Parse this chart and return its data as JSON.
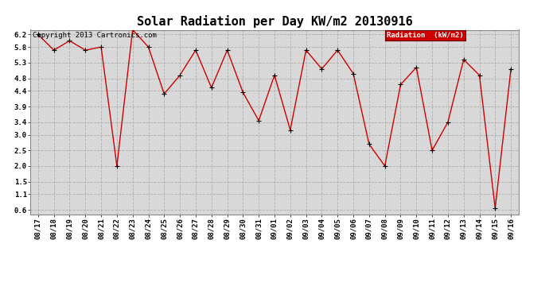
{
  "title": "Solar Radiation per Day KW/m2 20130916",
  "copyright": "Copyright 2013 Cartronics.com",
  "legend_label": "Radiation  (kW/m2)",
  "dates": [
    "08/17",
    "08/18",
    "08/19",
    "08/20",
    "08/21",
    "08/22",
    "08/23",
    "08/24",
    "08/25",
    "08/26",
    "08/27",
    "08/28",
    "08/29",
    "08/30",
    "08/31",
    "09/01",
    "09/02",
    "09/03",
    "09/04",
    "09/05",
    "09/06",
    "09/07",
    "09/08",
    "09/09",
    "09/10",
    "09/11",
    "09/12",
    "09/13",
    "09/14",
    "09/15",
    "09/16"
  ],
  "values": [
    6.2,
    5.7,
    6.0,
    5.7,
    5.8,
    2.0,
    6.35,
    5.8,
    4.3,
    4.9,
    5.7,
    4.5,
    5.7,
    4.35,
    3.45,
    4.9,
    3.15,
    5.7,
    5.1,
    5.7,
    4.95,
    2.7,
    2.0,
    4.6,
    5.15,
    2.5,
    3.4,
    5.4,
    4.9,
    0.65,
    5.1
  ],
  "line_color": "#cc0000",
  "marker_color": "#000000",
  "background_color": "#d8d8d8",
  "plot_bg_color": "#d8d8d8",
  "fig_bg_color": "#ffffff",
  "grid_color": "#aaaaaa",
  "legend_bg": "#cc0000",
  "legend_text_color": "#ffffff",
  "yticks": [
    0.6,
    1.1,
    1.5,
    2.0,
    2.5,
    3.0,
    3.4,
    3.9,
    4.4,
    4.8,
    5.3,
    5.8,
    6.2
  ],
  "ylim": [
    0.45,
    6.35
  ],
  "title_fontsize": 11,
  "tick_fontsize": 6.5,
  "copyright_fontsize": 6.5
}
